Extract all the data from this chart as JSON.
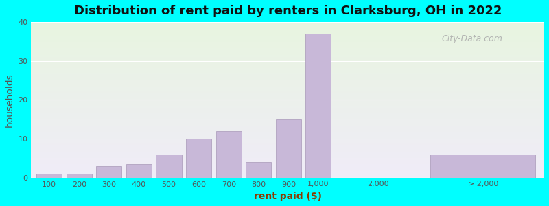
{
  "title": "Distribution of rent paid by renters in Clarksburg, OH in 2022",
  "xlabel": "rent paid ($)",
  "ylabel": "households",
  "background_color": "#00ffff",
  "plot_bg_color_top": "#e8f5e0",
  "plot_bg_color_bottom": "#f0ecf8",
  "bar_color": "#c8b8d8",
  "bar_edge_color": "#a898b8",
  "values_packed": [
    1,
    1,
    3,
    3.5,
    6,
    10,
    12,
    4,
    15,
    37
  ],
  "value_outlier": 6,
  "labels_packed": [
    "100",
    "200",
    "300",
    "400",
    "500",
    "600",
    "700",
    "800",
    "900",
    "1,000"
  ],
  "label_mid": "2,000",
  "label_outlier": "> 2,000",
  "ylim": [
    0,
    40
  ],
  "yticks": [
    0,
    10,
    20,
    30,
    40
  ],
  "title_fontsize": 13,
  "axis_label_fontsize": 10,
  "tick_fontsize": 8,
  "watermark": "City-Data.com"
}
